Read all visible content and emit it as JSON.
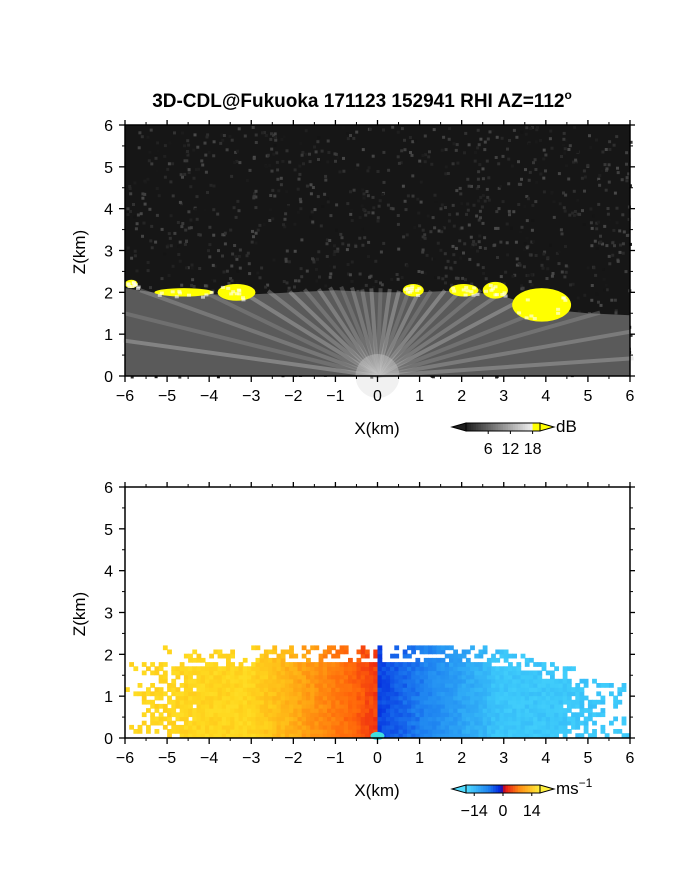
{
  "chart_data": [
    {
      "type": "heatmap",
      "title": "3D-CDL@Fukuoka 171123 152941 RHI AZ=112",
      "title_superscript": "o",
      "xlabel": "X(km)",
      "ylabel": "Z(km)",
      "xlim": [
        -6,
        6
      ],
      "ylim": [
        0,
        6
      ],
      "x_ticks": [
        "−6",
        "−5",
        "−4",
        "−3",
        "−2",
        "−1",
        "0",
        "1",
        "2",
        "3",
        "4",
        "5",
        "6"
      ],
      "y_ticks": [
        "0",
        "1",
        "2",
        "3",
        "4",
        "5",
        "6"
      ],
      "quantity": "SNR",
      "colorbar": {
        "unit": "dB",
        "ticks": [
          "6",
          "12",
          "18"
        ],
        "range": [
          0,
          20
        ]
      },
      "colors": {
        "background": "#161616",
        "echo_low": "#5a5a5a",
        "echo_high": "#d8d8d8",
        "strong": "#ffff00"
      },
      "boundary_layer_top_km": [
        [
          -6,
          2.1
        ],
        [
          -5,
          1.95
        ],
        [
          -4,
          1.95
        ],
        [
          -3,
          1.95
        ],
        [
          -2,
          2.0
        ],
        [
          -1,
          2.05
        ],
        [
          0,
          2.0
        ],
        [
          1,
          2.0
        ],
        [
          2,
          2.05
        ],
        [
          3,
          1.9
        ],
        [
          4,
          1.6
        ],
        [
          5,
          1.5
        ],
        [
          6,
          1.45
        ]
      ],
      "strong_echo_patches": [
        {
          "x": [
            -6.0,
            -5.7
          ],
          "z": [
            2.1,
            2.3
          ]
        },
        {
          "x": [
            -5.3,
            -3.9
          ],
          "z": [
            1.9,
            2.1
          ]
        },
        {
          "x": [
            -3.8,
            -2.9
          ],
          "z": [
            1.8,
            2.2
          ]
        },
        {
          "x": [
            0.6,
            1.1
          ],
          "z": [
            1.9,
            2.2
          ]
        },
        {
          "x": [
            1.7,
            2.4
          ],
          "z": [
            1.9,
            2.2
          ]
        },
        {
          "x": [
            2.5,
            3.1
          ],
          "z": [
            1.85,
            2.25
          ]
        },
        {
          "x": [
            3.2,
            4.6
          ],
          "z": [
            1.3,
            2.1
          ]
        }
      ]
    },
    {
      "type": "heatmap",
      "title": "",
      "xlabel": "X(km)",
      "ylabel": "Z(km)",
      "xlim": [
        -6,
        6
      ],
      "ylim": [
        0,
        6
      ],
      "x_ticks": [
        "−6",
        "−5",
        "−4",
        "−3",
        "−2",
        "−1",
        "0",
        "1",
        "2",
        "3",
        "4",
        "5",
        "6"
      ],
      "y_ticks": [
        "0",
        "1",
        "2",
        "3",
        "4",
        "5",
        "6"
      ],
      "quantity": "Doppler velocity",
      "colorbar": {
        "unit": "ms",
        "unit_superscript": "−1",
        "ticks": [
          "−14",
          "0",
          "14"
        ],
        "range": [
          -18,
          18
        ]
      },
      "velocity_field": {
        "left_side_ms": [
          3,
          14
        ],
        "right_side_ms": [
          -14,
          -3
        ],
        "top_km": 2.0
      }
    }
  ]
}
